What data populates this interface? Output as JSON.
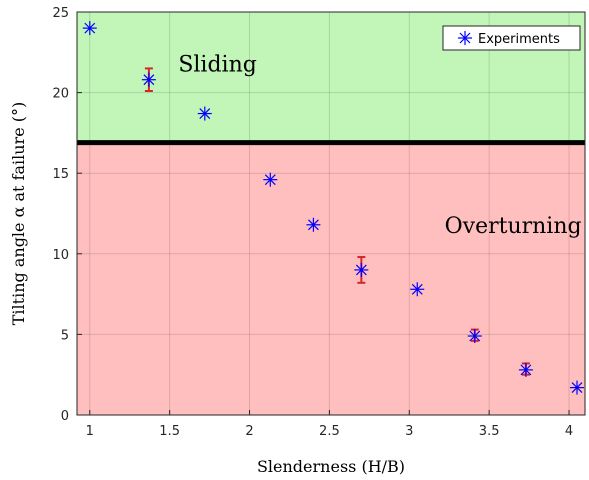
{
  "chart_data": {
    "type": "scatter",
    "xlabel": "Slenderness (H/B)",
    "ylabel": "Tilting angle α at failure (°)",
    "xlim": [
      0.92,
      4.1
    ],
    "ylim": [
      0,
      25
    ],
    "xticks": [
      1,
      1.5,
      2,
      2.5,
      3,
      3.5,
      4
    ],
    "xtick_labels": [
      "1",
      "1.5",
      "2",
      "2.5",
      "3",
      "3.5",
      "4"
    ],
    "yticks": [
      0,
      5,
      10,
      15,
      20,
      25
    ],
    "ytick_labels": [
      "0",
      "5",
      "10",
      "15",
      "20",
      "25"
    ],
    "grid": true,
    "legend_position": "top-right",
    "series": [
      {
        "name": "Experiments",
        "marker": "asterisk",
        "color": "#0000ff",
        "x": [
          1.0,
          1.37,
          1.72,
          2.13,
          2.4,
          2.7,
          3.05,
          3.41,
          3.73,
          4.05
        ],
        "y": [
          24.0,
          20.8,
          18.7,
          14.6,
          11.8,
          9.0,
          7.8,
          4.9,
          2.8,
          1.7
        ]
      }
    ],
    "error_bars": {
      "color": "#d62728",
      "points": [
        {
          "x": 1.37,
          "low": 20.1,
          "high": 21.5
        },
        {
          "x": 2.7,
          "low": 8.2,
          "high": 9.8
        },
        {
          "x": 3.41,
          "low": 4.6,
          "high": 5.3
        },
        {
          "x": 3.73,
          "low": 2.5,
          "high": 3.2
        }
      ]
    },
    "threshold": {
      "y": 16.9,
      "color": "#000000"
    },
    "regions": [
      {
        "label": "Sliding",
        "y_from": 16.9,
        "y_to": 25,
        "color": "#c2f5b8"
      },
      {
        "label": "Overturning",
        "y_from": 0,
        "y_to": 16.9,
        "color": "#ffbfbf"
      }
    ]
  }
}
